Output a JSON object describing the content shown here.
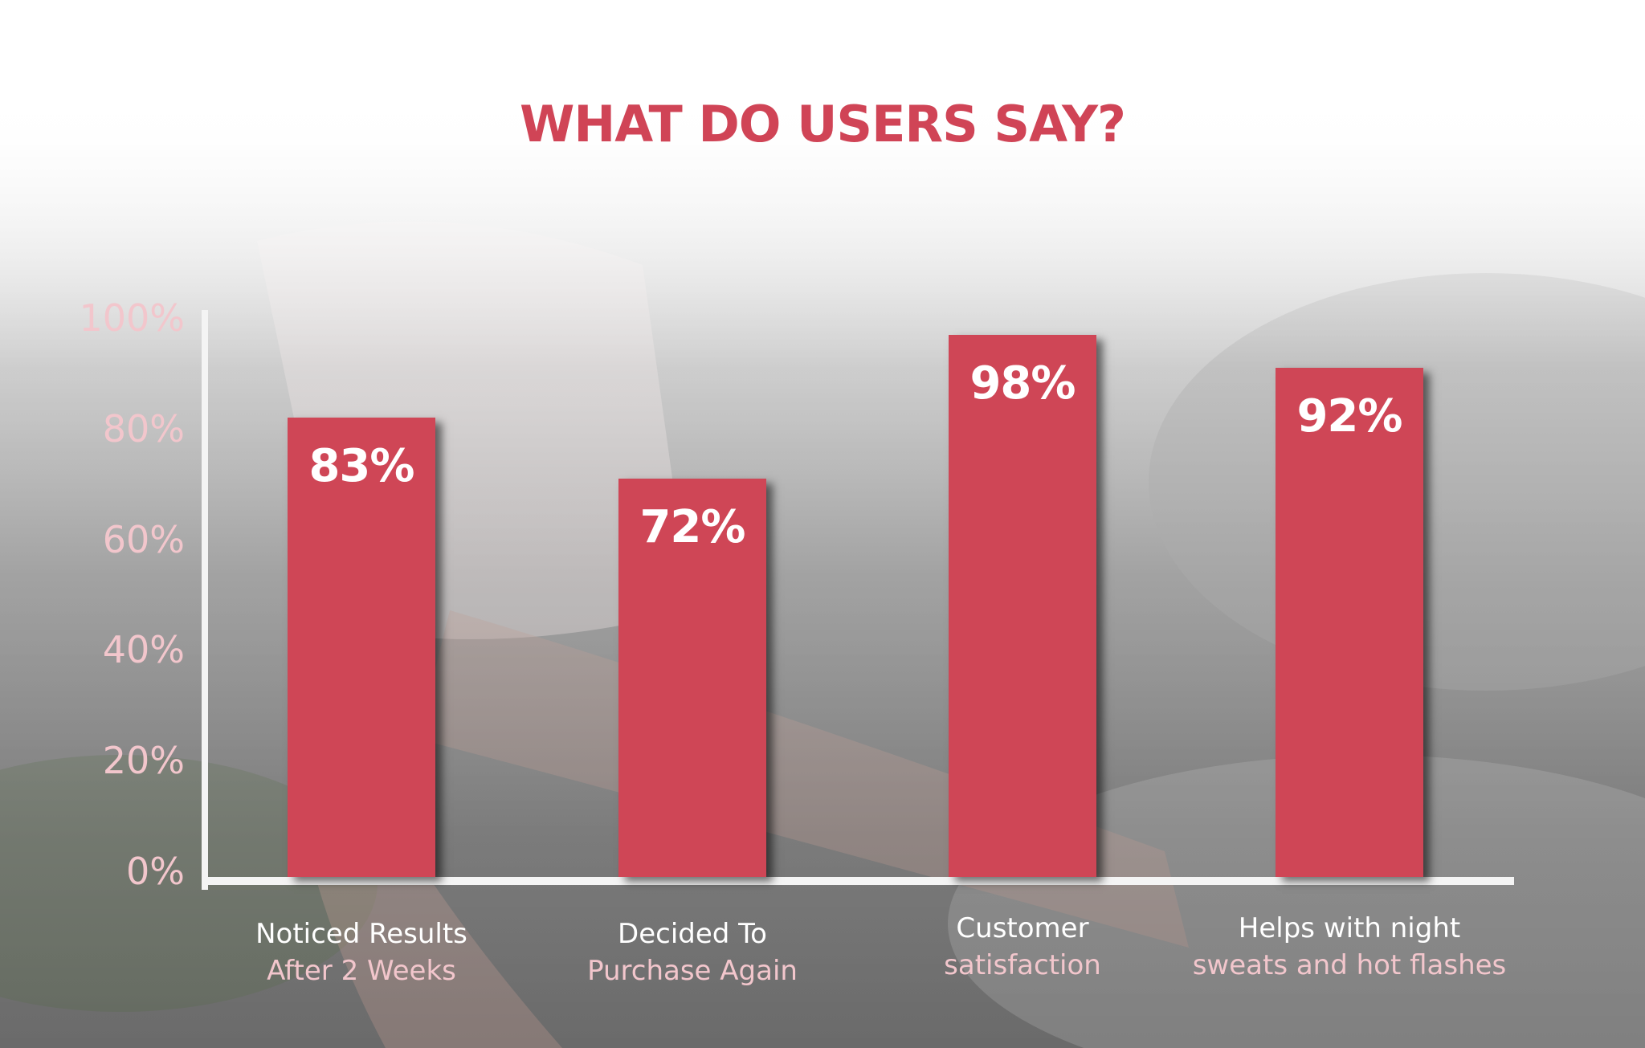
{
  "title": "WHAT DO USERS SAY?",
  "colors": {
    "title": "#d04456",
    "bar": "#cf4656",
    "tick": "#f2c6cc",
    "axis": "#f4f4f4",
    "label_primary": "#ffffff",
    "label_secondary": "#f2c6cc"
  },
  "y_ticks": [
    "100%",
    "80%",
    "60%",
    "40%",
    "20%",
    "0%"
  ],
  "categories": [
    {
      "line1": "Noticed Results",
      "line2": "After 2 Weeks"
    },
    {
      "line1": "Decided To",
      "line2": "Purchase Again"
    },
    {
      "line1": "Customer",
      "line2": "satisfaction"
    },
    {
      "line1": "Helps with night",
      "line2": "sweats and hot flashes"
    }
  ],
  "chart_data": {
    "type": "bar",
    "title": "WHAT DO USERS SAY?",
    "categories": [
      "Noticed Results After 2 Weeks",
      "Decided To Purchase Again",
      "Customer satisfaction",
      "Helps with night sweats and hot flashes"
    ],
    "values": [
      83,
      72,
      98,
      92
    ],
    "value_labels": [
      "83%",
      "72%",
      "98%",
      "92%"
    ],
    "ylim": [
      0,
      100
    ],
    "y_unit": "%",
    "grid": false,
    "legend": "none"
  }
}
